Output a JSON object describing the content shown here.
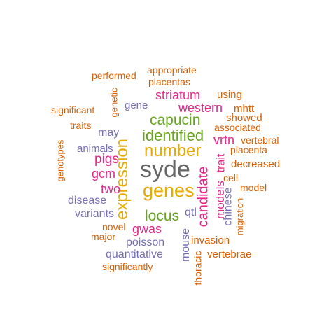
{
  "palette": {
    "orange": "#d95f02",
    "purple": "#7570b3",
    "magenta": "#e7298a",
    "green": "#66a61e",
    "gold": "#e6ab02",
    "gray": "#666666"
  },
  "words": [
    {
      "text": "syde",
      "color": "gray",
      "rotated": false
    },
    {
      "text": "genes",
      "color": "gold",
      "rotated": false
    },
    {
      "text": "number",
      "color": "gold",
      "rotated": false
    },
    {
      "text": "expression",
      "color": "gold",
      "rotated": true
    },
    {
      "text": "identified",
      "color": "green",
      "rotated": false
    },
    {
      "text": "capucin",
      "color": "green",
      "rotated": false
    },
    {
      "text": "locus",
      "color": "green",
      "rotated": false
    },
    {
      "text": "candidate",
      "color": "magenta",
      "rotated": true
    },
    {
      "text": "pigs",
      "color": "magenta",
      "rotated": false
    },
    {
      "text": "gcm",
      "color": "magenta",
      "rotated": false
    },
    {
      "text": "two",
      "color": "magenta",
      "rotated": false
    },
    {
      "text": "gwas",
      "color": "magenta",
      "rotated": false
    },
    {
      "text": "striatum",
      "color": "magenta",
      "rotated": false
    },
    {
      "text": "western",
      "color": "magenta",
      "rotated": false
    },
    {
      "text": "vrtn",
      "color": "magenta",
      "rotated": false
    },
    {
      "text": "models",
      "color": "magenta",
      "rotated": true
    },
    {
      "text": "trait",
      "color": "magenta",
      "rotated": true
    },
    {
      "text": "chinese",
      "color": "purple",
      "rotated": true
    },
    {
      "text": "mouse",
      "color": "purple",
      "rotated": true
    },
    {
      "text": "qtl",
      "color": "purple",
      "rotated": false
    },
    {
      "text": "gene",
      "color": "purple",
      "rotated": false
    },
    {
      "text": "may",
      "color": "purple",
      "rotated": false
    },
    {
      "text": "animals",
      "color": "purple",
      "rotated": false
    },
    {
      "text": "disease",
      "color": "purple",
      "rotated": false
    },
    {
      "text": "variants",
      "color": "purple",
      "rotated": false
    },
    {
      "text": "poisson",
      "color": "purple",
      "rotated": false
    },
    {
      "text": "quantitative",
      "color": "purple",
      "rotated": false
    },
    {
      "text": "appropriate",
      "color": "orange",
      "rotated": false
    },
    {
      "text": "performed",
      "color": "orange",
      "rotated": false
    },
    {
      "text": "placentas",
      "color": "orange",
      "rotated": false
    },
    {
      "text": "genetic",
      "color": "orange",
      "rotated": true
    },
    {
      "text": "using",
      "color": "orange",
      "rotated": false
    },
    {
      "text": "significant",
      "color": "orange",
      "rotated": false
    },
    {
      "text": "mhtt",
      "color": "orange",
      "rotated": false
    },
    {
      "text": "showed",
      "color": "orange",
      "rotated": false
    },
    {
      "text": "traits",
      "color": "orange",
      "rotated": false
    },
    {
      "text": "associated",
      "color": "orange",
      "rotated": false
    },
    {
      "text": "vertebral",
      "color": "orange",
      "rotated": false
    },
    {
      "text": "genotypes",
      "color": "orange",
      "rotated": true
    },
    {
      "text": "placenta",
      "color": "orange",
      "rotated": false
    },
    {
      "text": "decreased",
      "color": "orange",
      "rotated": false
    },
    {
      "text": "cell",
      "color": "orange",
      "rotated": false
    },
    {
      "text": "model",
      "color": "orange",
      "rotated": false
    },
    {
      "text": "migration",
      "color": "orange",
      "rotated": true
    },
    {
      "text": "novel",
      "color": "orange",
      "rotated": false
    },
    {
      "text": "major",
      "color": "orange",
      "rotated": false
    },
    {
      "text": "invasion",
      "color": "orange",
      "rotated": false
    },
    {
      "text": "vertebrae",
      "color": "orange",
      "rotated": false
    },
    {
      "text": "thoracic",
      "color": "orange",
      "rotated": true
    },
    {
      "text": "significantly",
      "color": "orange",
      "rotated": false
    }
  ]
}
